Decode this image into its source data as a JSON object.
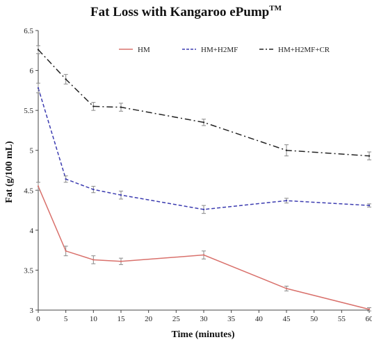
{
  "chart_data": {
    "type": "line",
    "title": "Fat Loss with Kangaroo ePump",
    "title_mark": "TM",
    "xlabel": "Time (minutes)",
    "ylabel": "Fat (g/100 mL)",
    "x": [
      0,
      5,
      10,
      15,
      30,
      45,
      60
    ],
    "xlim": [
      0,
      60
    ],
    "ylim": [
      3,
      6.5
    ],
    "xticks": [
      "0",
      "5",
      "10",
      "15",
      "20",
      "25",
      "30",
      "35",
      "40",
      "45",
      "50",
      "55",
      "60"
    ],
    "yticks": [
      "3",
      "3.5",
      "4",
      "4.5",
      "5",
      "5.5",
      "6",
      "6.5"
    ],
    "grid": false,
    "legend_position": "top",
    "series": [
      {
        "name": "HM",
        "color": "#d9706b",
        "dash": "solid",
        "values": [
          4.55,
          3.74,
          3.63,
          3.61,
          3.69,
          3.27,
          3.01
        ],
        "err": [
          0.05,
          0.06,
          0.05,
          0.04,
          0.05,
          0.03,
          0.02
        ]
      },
      {
        "name": "HM+H2MF",
        "color": "#3b3bb0",
        "dash": "dash",
        "values": [
          5.78,
          4.64,
          4.51,
          4.44,
          4.26,
          4.37,
          4.31
        ],
        "err": [
          0.06,
          0.04,
          0.04,
          0.05,
          0.05,
          0.03,
          0.02
        ]
      },
      {
        "name": "HM+H2MF+CR",
        "color": "#222222",
        "dash": "dashdot",
        "values": [
          6.26,
          5.89,
          5.55,
          5.54,
          5.35,
          5.0,
          4.93
        ],
        "err": [
          0.05,
          0.06,
          0.05,
          0.05,
          0.04,
          0.07,
          0.05
        ]
      }
    ]
  }
}
